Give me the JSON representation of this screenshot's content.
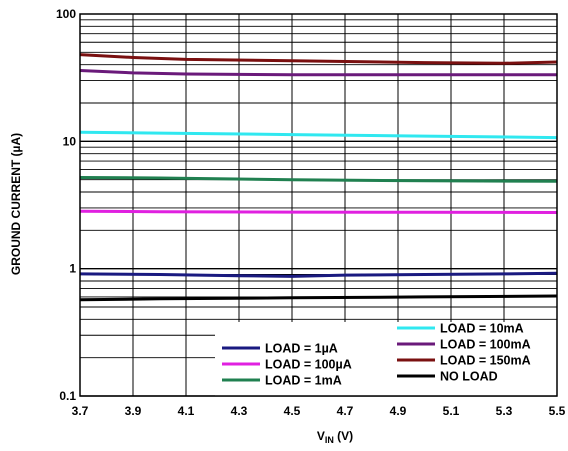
{
  "chart_data": {
    "type": "line",
    "title": "",
    "xlabel": "V",
    "xlabel_sub": "IN",
    "xlabel_unit": " (V)",
    "ylabel": "GROUND CURRENT (µA)",
    "xlim": [
      3.7,
      5.5
    ],
    "ylim": [
      0.1,
      100
    ],
    "y_scale": "log",
    "grid": true,
    "legend_position": "bottom-right",
    "x_ticks": [
      "3.7",
      "3.9",
      "4.1",
      "4.3",
      "4.5",
      "4.7",
      "4.9",
      "5.1",
      "5.3",
      "5.5"
    ],
    "y_ticks": [
      "0.1",
      "1",
      "10",
      "100"
    ],
    "series": [
      {
        "name": "LOAD = 1µA",
        "color": "#1a1a80",
        "x": [
          3.7,
          4.0,
          4.3,
          4.5,
          4.7,
          5.0,
          5.3,
          5.5
        ],
        "values": [
          0.91,
          0.9,
          0.88,
          0.87,
          0.89,
          0.9,
          0.91,
          0.92
        ]
      },
      {
        "name": "LOAD = 100µA",
        "color": "#e020e0",
        "x": [
          3.7,
          4.0,
          4.5,
          5.0,
          5.5
        ],
        "values": [
          2.82,
          2.8,
          2.78,
          2.77,
          2.76
        ]
      },
      {
        "name": "LOAD = 1mA",
        "color": "#208050",
        "x": [
          3.7,
          4.0,
          4.5,
          5.0,
          5.5
        ],
        "values": [
          5.2,
          5.15,
          5.0,
          4.9,
          4.85
        ]
      },
      {
        "name": "LOAD = 10mA",
        "color": "#30e8f0",
        "x": [
          3.7,
          4.0,
          4.5,
          5.0,
          5.5
        ],
        "values": [
          11.8,
          11.6,
          11.3,
          11.0,
          10.7
        ]
      },
      {
        "name": "LOAD = 100mA",
        "color": "#6a1a7a",
        "x": [
          3.7,
          3.9,
          4.1,
          4.5,
          5.0,
          5.5
        ],
        "values": [
          36.0,
          34.5,
          33.8,
          33.3,
          33.3,
          33.3
        ]
      },
      {
        "name": "LOAD = 150mA",
        "color": "#7a1010",
        "x": [
          3.7,
          3.9,
          4.1,
          4.5,
          5.0,
          5.3,
          5.5
        ],
        "values": [
          48.0,
          45.5,
          44.0,
          43.0,
          41.5,
          41.0,
          42.0
        ]
      },
      {
        "name": "NO LOAD",
        "color": "#000000",
        "x": [
          3.7,
          4.0,
          4.5,
          5.0,
          5.5
        ],
        "values": [
          0.57,
          0.58,
          0.59,
          0.6,
          0.61
        ]
      }
    ],
    "legend_columns": [
      [
        "LOAD = 1µA",
        "LOAD = 100µA",
        "LOAD = 1mA"
      ],
      [
        "LOAD = 10mA",
        "LOAD = 100mA",
        "LOAD = 150mA",
        "NO LOAD"
      ]
    ]
  }
}
